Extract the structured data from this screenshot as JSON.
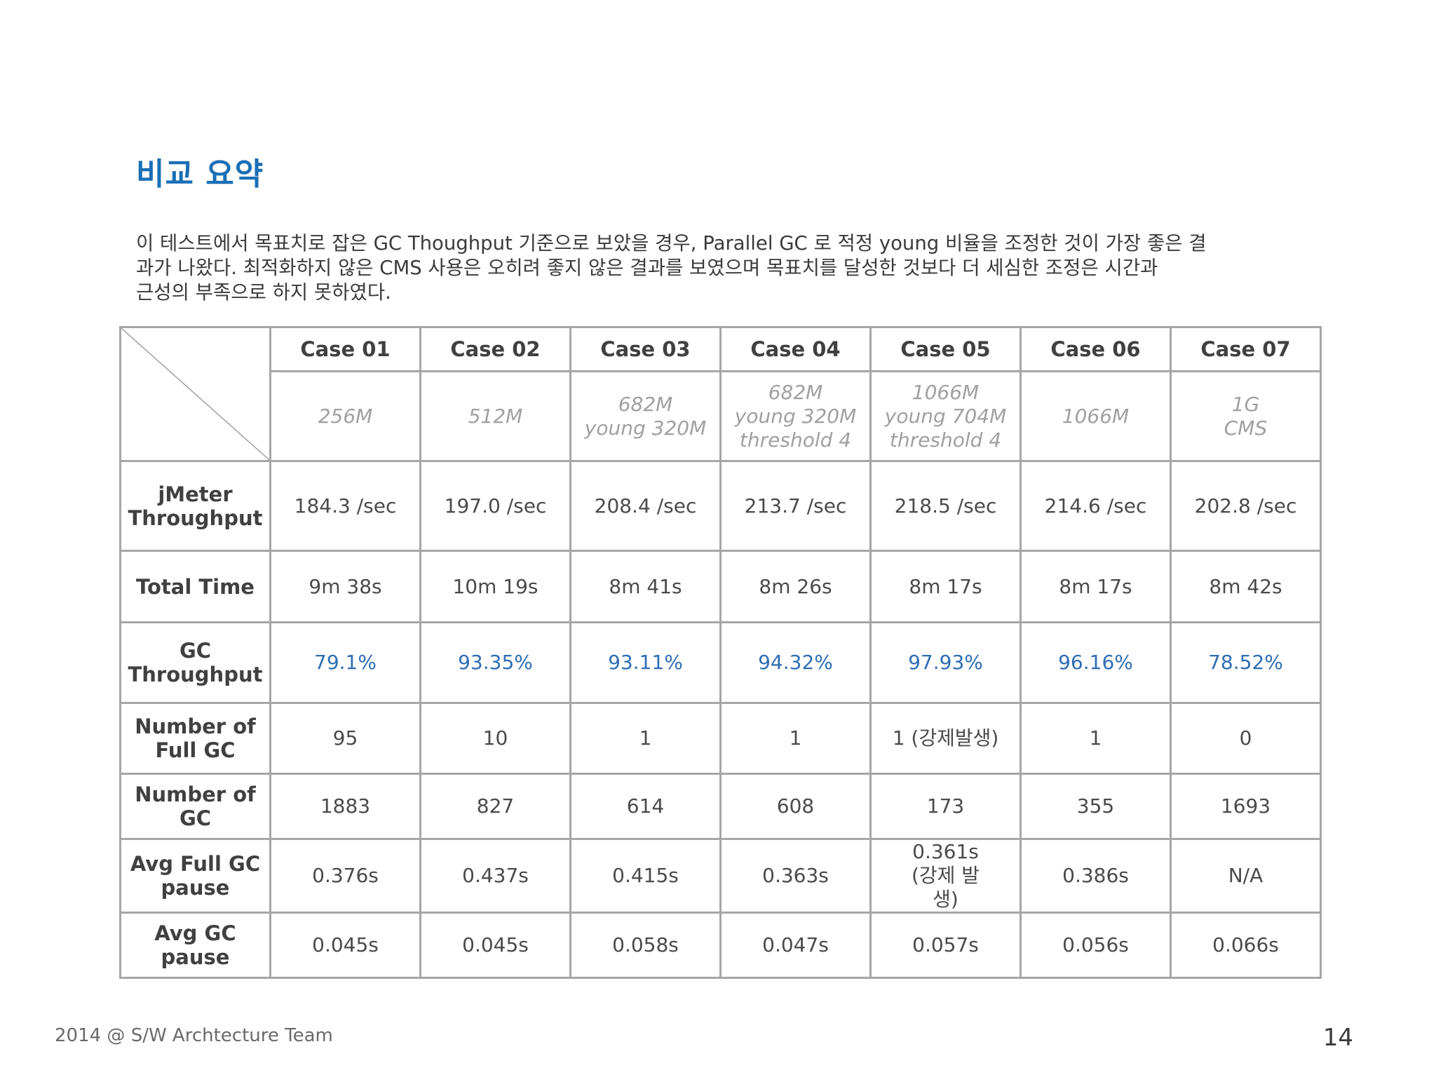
{
  "title": "비교 요약",
  "summary_lines": [
    "이 테스트에서 목표치로 잡은 GC Thoughput 기준으로 보았을 경우, Parallel GC 로 적정 young 비율을 조정한 것이 가장 좋은 결",
    "과가 나왔다. 최적화하지 않은 CMS 사용은 오히려 좋지 않은 결과를 보였으며 목표치를 달성한 것보다 더 세심한 조정은 시간과",
    "근성의 부족으로 하지 못하였다."
  ],
  "table": {
    "cases": [
      "Case 01",
      "Case 02",
      "Case 03",
      "Case 04",
      "Case 05",
      "Case 06",
      "Case 07"
    ],
    "configs": [
      [
        "256M"
      ],
      [
        "512M"
      ],
      [
        "682M",
        "young 320M"
      ],
      [
        "682M",
        "young 320M",
        "threshold 4"
      ],
      [
        "1066M",
        "young 704M",
        "threshold 4"
      ],
      [
        "1066M"
      ],
      [
        "1G",
        "CMS"
      ]
    ],
    "rows": [
      {
        "label": [
          "jMeter",
          "Throughput"
        ],
        "values": [
          "184.3 /sec",
          "197.0 /sec",
          "208.4 /sec",
          "213.7 /sec",
          "218.5 /sec",
          "214.6 /sec",
          "202.8 /sec"
        ],
        "style": "normal"
      },
      {
        "label": [
          "Total Time"
        ],
        "values": [
          "9m 38s",
          "10m 19s",
          "8m 41s",
          "8m 26s",
          "8m 17s",
          "8m 17s",
          "8m 42s"
        ],
        "style": "normal"
      },
      {
        "label": [
          "GC",
          "Throughput"
        ],
        "values": [
          "79.1%",
          "93.35%",
          "93.11%",
          "94.32%",
          "97.93%",
          "96.16%",
          "78.52%"
        ],
        "style": "pct"
      },
      {
        "label": [
          "Number of",
          "Full GC"
        ],
        "values": [
          "95",
          "10",
          "1",
          "1",
          "1 (강제발생)",
          "1",
          "0"
        ],
        "style": "normal"
      },
      {
        "label": [
          "Number of",
          "GC"
        ],
        "values": [
          "1883",
          "827",
          "614",
          "608",
          "173",
          "355",
          "1693"
        ],
        "style": "normal"
      },
      {
        "label": [
          "Avg Full GC",
          "pause"
        ],
        "values": [
          "0.376s",
          "0.437s",
          "0.415s",
          "0.363s",
          "0.361s (강제 발생)",
          "0.386s",
          "N/A"
        ],
        "style": "normal"
      },
      {
        "label": [
          "Avg GC",
          "pause"
        ],
        "values": [
          "0.045s",
          "0.045s",
          "0.058s",
          "0.047s",
          "0.057s",
          "0.056s",
          "0.066s"
        ],
        "style": "normal"
      }
    ]
  },
  "footer": "2014 @ S/W Archtecture Team",
  "page_number": "14",
  "colors": {
    "title": "#1a6fb6",
    "percent_values": "#2e6db4",
    "config_text": "#a0a0a0",
    "table_border": "#a6a6a6"
  }
}
